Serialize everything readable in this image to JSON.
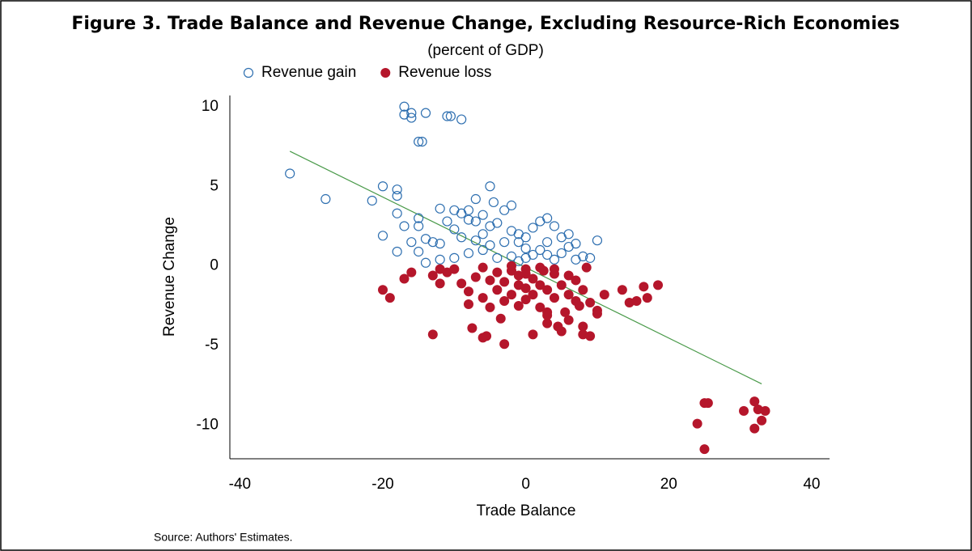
{
  "chart_data": {
    "type": "scatter",
    "title": "Figure 3. Trade Balance and Revenue Change, Excluding Resource-Rich Economies",
    "subtitle": "(percent of GDP)",
    "x_label": "Trade Balance",
    "y_label": "Revenue Change",
    "source": "Source: Authors' Estimates.",
    "xlim": [
      -41.4,
      42.5
    ],
    "ylim": [
      -12.1,
      10.7
    ],
    "xticks": [
      -40,
      -20,
      0,
      20,
      40
    ],
    "yticks": [
      -10,
      -5,
      0,
      5,
      10
    ],
    "grid": false,
    "legend": "top-left",
    "trend_line": {
      "x": [
        -33,
        33
      ],
      "values": [
        7.2,
        -7.4
      ],
      "color": "#4a9a4a"
    },
    "series": [
      {
        "name": "Revenue gain",
        "color": "#2e6fb0",
        "filled": false,
        "x": [
          -33,
          -28,
          -21.5,
          -20,
          -20,
          -18,
          -18,
          -18,
          -18,
          -17,
          -17,
          -17,
          -16,
          -16,
          -16,
          -15,
          -15,
          -15,
          -15,
          -14.5,
          -14,
          -14,
          -14,
          -13,
          -12,
          -12,
          -11,
          -10.5,
          -9,
          -11,
          -10,
          -10,
          -10,
          -9,
          -9,
          -8,
          -8,
          -8,
          -7,
          -7,
          -7,
          -6,
          -6,
          -5,
          -5,
          -5,
          -4.5,
          -4,
          -3,
          -3,
          -2,
          -2,
          -2,
          -1,
          -1,
          0,
          0,
          1,
          1,
          2,
          2,
          3,
          3,
          4,
          4,
          5,
          5,
          6,
          6,
          7,
          7,
          8,
          9,
          10,
          -12,
          -6,
          -4,
          0,
          -1,
          3
        ],
        "values": [
          5.8,
          4.2,
          4.1,
          1.9,
          5.0,
          0.9,
          3.3,
          4.4,
          4.8,
          2.5,
          10,
          9.5,
          9.3,
          9.6,
          1.5,
          7.8,
          2.5,
          3.0,
          0.9,
          7.8,
          9.6,
          1.7,
          0.2,
          1.5,
          1.4,
          3.6,
          9.4,
          9.4,
          9.2,
          2.8,
          3.5,
          2.3,
          0.5,
          1.8,
          3.3,
          2.9,
          0.8,
          3.5,
          4.2,
          1.6,
          2.8,
          3.2,
          1.0,
          1.3,
          2.5,
          5.0,
          4.0,
          0.5,
          3.5,
          1.5,
          3.8,
          2.2,
          0.6,
          1.5,
          2.0,
          0.5,
          1.8,
          2.4,
          0.7,
          1.0,
          2.8,
          3.0,
          1.5,
          0.4,
          2.5,
          1.8,
          0.8,
          2.0,
          1.2,
          1.4,
          0.4,
          0.6,
          0.5,
          1.6,
          0.4,
          2.0,
          2.7,
          1.1,
          0.3,
          0.7
        ]
      },
      {
        "name": "Revenue loss",
        "color": "#b5162b",
        "filled": true,
        "x": [
          -20,
          -19,
          -17,
          -16,
          -13,
          -13,
          -12,
          -12,
          -11,
          -10,
          -9,
          -8,
          -7.5,
          -7,
          -6,
          -6,
          -5.5,
          -5,
          -5,
          -4,
          -4,
          -3.5,
          -3,
          -3,
          -3,
          -2,
          -2,
          -1,
          -1,
          -1,
          0,
          0,
          0,
          1,
          1,
          1,
          2,
          2,
          2.5,
          3,
          3,
          3,
          4,
          4,
          4.5,
          5,
          5,
          5.5,
          6,
          6,
          6,
          7,
          7,
          7.5,
          8,
          8,
          8,
          8.5,
          9,
          9,
          10,
          10,
          11,
          13.5,
          14.5,
          15.5,
          16.5,
          17,
          18.5,
          24,
          25,
          25.5,
          25,
          30.5,
          32,
          32,
          32.5,
          33,
          33.5,
          -2,
          0,
          2,
          4,
          -6,
          -8,
          3
        ],
        "values": [
          -1.5,
          -2.0,
          -0.8,
          -0.4,
          -4.3,
          -0.6,
          -0.2,
          -1.1,
          -0.4,
          -0.2,
          -1.1,
          -2.4,
          -3.9,
          -0.7,
          -4.5,
          -2.0,
          -4.4,
          -0.9,
          -2.6,
          -1.5,
          -0.4,
          -3.3,
          -4.9,
          -2.2,
          -1.0,
          -0.3,
          -1.8,
          -1.2,
          -2.5,
          -0.6,
          -0.2,
          -1.4,
          -2.1,
          -4.3,
          -0.8,
          -1.8,
          -1.2,
          -2.6,
          -0.3,
          -3.6,
          -2.9,
          -1.5,
          -0.5,
          -2.0,
          -3.8,
          -4.1,
          -1.2,
          -2.9,
          -3.4,
          -0.6,
          -1.8,
          -2.2,
          -0.9,
          -2.5,
          -3.8,
          -4.3,
          -1.5,
          -0.1,
          -4.4,
          -2.3,
          -2.8,
          -3.0,
          -1.8,
          -1.5,
          -2.3,
          -2.2,
          -1.3,
          -2.0,
          -1.2,
          -9.9,
          -8.6,
          -8.6,
          -11.5,
          -9.1,
          -8.5,
          -10.2,
          -9.0,
          -9.7,
          -9.1,
          0,
          -0.5,
          -0.1,
          -0.2,
          -0.1,
          -1.6,
          -3.1
        ]
      }
    ]
  }
}
